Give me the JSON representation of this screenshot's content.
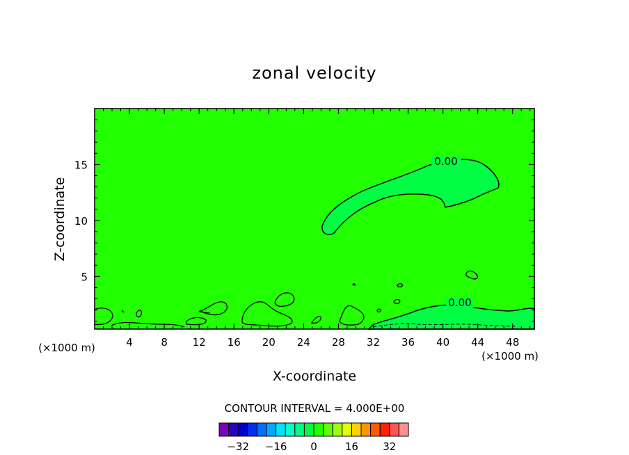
{
  "chart_data": {
    "type": "contour",
    "title": "zonal velocity",
    "xlabel": "X-coordinate",
    "ylabel": "Z-coordinate",
    "x_unit_left": "(×1000 m)",
    "x_unit_right": "(×1000 m)",
    "xlim": [
      0,
      50.5
    ],
    "ylim": [
      0.3,
      20
    ],
    "x_ticks": [
      "4",
      "8",
      "12",
      "16",
      "20",
      "24",
      "28",
      "32",
      "36",
      "40",
      "44",
      "48"
    ],
    "y_ticks": [
      "5",
      "10",
      "15"
    ],
    "contour_labels": [
      "0.00",
      "0.00"
    ],
    "contour_interval_text": "CONTOUR INTERVAL = 4.000E+00",
    "colorbar": {
      "colors": [
        "#7f00bf",
        "#2b00bf",
        "#0000cc",
        "#0030f0",
        "#0070ff",
        "#00a8ff",
        "#00e5ff",
        "#00ffcc",
        "#00ff80",
        "#00ff40",
        "#20ff00",
        "#60ff00",
        "#a0ff00",
        "#e0ff00",
        "#ffd000",
        "#ff9600",
        "#ff5a00",
        "#ff2000",
        "#ff5555",
        "#ff9090"
      ],
      "tick_labels": [
        "−32",
        "−16",
        "0",
        "16",
        "32"
      ]
    },
    "background_color": "#22ff00",
    "positive_region_color": "#00ff44"
  }
}
